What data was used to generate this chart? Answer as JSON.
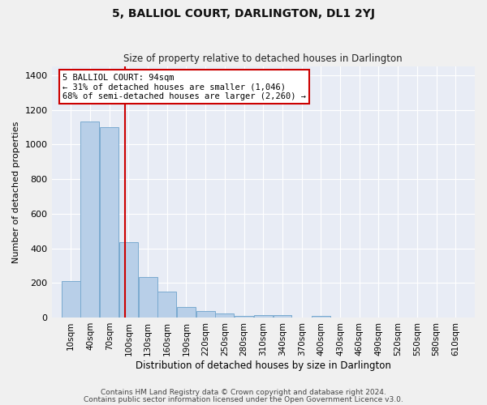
{
  "title": "5, BALLIOL COURT, DARLINGTON, DL1 2YJ",
  "subtitle": "Size of property relative to detached houses in Darlington",
  "xlabel": "Distribution of detached houses by size in Darlington",
  "ylabel": "Number of detached properties",
  "footer1": "Contains HM Land Registry data © Crown copyright and database right 2024.",
  "footer2": "Contains public sector information licensed under the Open Government Licence v3.0.",
  "annotation_title": "5 BALLIOL COURT: 94sqm",
  "annotation_line1": "← 31% of detached houses are smaller (1,046)",
  "annotation_line2": "68% of semi-detached houses are larger (2,260) →",
  "property_size": 94,
  "bins_start": [
    10,
    40,
    70,
    100,
    130,
    160,
    190,
    220,
    250,
    280,
    310,
    340,
    370,
    400,
    430,
    460,
    490,
    520,
    550,
    580,
    610
  ],
  "values": [
    210,
    1130,
    1100,
    435,
    235,
    148,
    60,
    40,
    25,
    10,
    15,
    15,
    0,
    12,
    0,
    0,
    0,
    0,
    0,
    0,
    0
  ],
  "bar_color": "#b8cfe8",
  "bar_edge_color": "#7aaad0",
  "vline_color": "#cc0000",
  "annotation_box_facecolor": "#ffffff",
  "annotation_box_edgecolor": "#cc0000",
  "bg_color": "#e8ecf5",
  "fig_bg_color": "#f0f0f0",
  "ylim": [
    0,
    1450
  ],
  "yticks": [
    0,
    200,
    400,
    600,
    800,
    1000,
    1200,
    1400
  ],
  "title_fontsize": 10,
  "subtitle_fontsize": 8.5,
  "ylabel_fontsize": 8,
  "xlabel_fontsize": 8.5,
  "tick_fontsize": 7.5,
  "annotation_fontsize": 7.5,
  "footer_fontsize": 6.5
}
